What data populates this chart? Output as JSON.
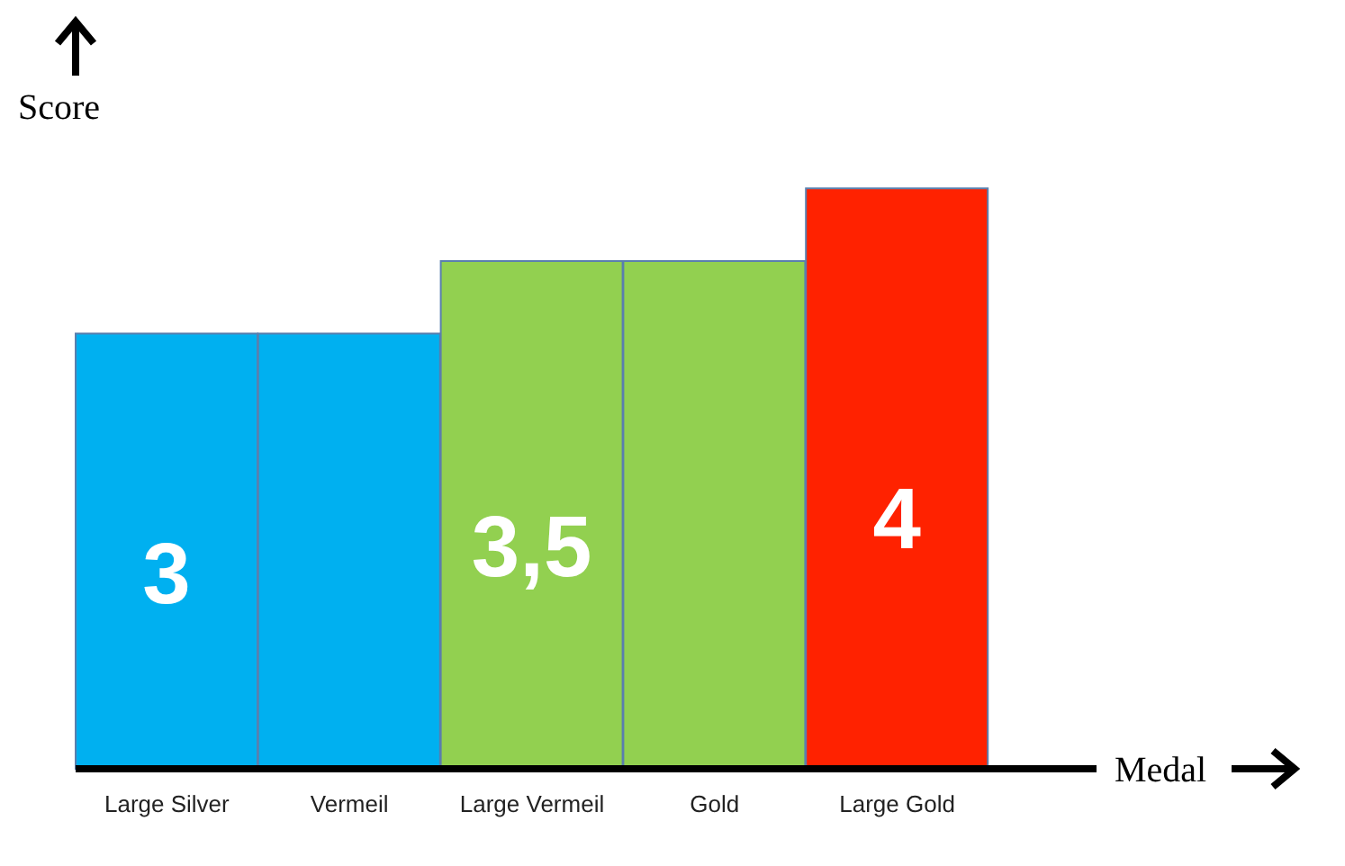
{
  "chart_data": {
    "type": "bar",
    "xlabel": "Medal",
    "ylabel": "Score",
    "categories": [
      "Large Silver",
      "Vermeil",
      "Large Vermeil",
      "Gold",
      "Large Gold"
    ],
    "values": [
      3,
      3,
      3.5,
      3.5,
      4
    ],
    "colors": [
      "#00b0f0",
      "#00b0f0",
      "#92d050",
      "#92d050",
      "#ff2200"
    ],
    "value_labels": [
      "3",
      null,
      "3,5",
      null,
      "4"
    ],
    "legend": false,
    "grid": false
  }
}
